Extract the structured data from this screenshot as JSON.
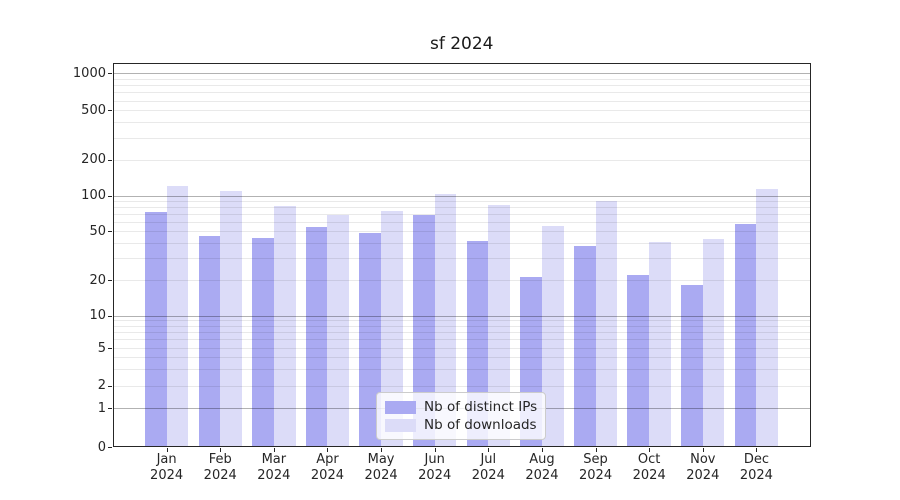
{
  "title": "sf 2024",
  "chart_data": {
    "type": "bar",
    "title": "sf 2024",
    "categories": [
      "Jan 2024",
      "Feb 2024",
      "Mar 2024",
      "Apr 2024",
      "May 2024",
      "Jun 2024",
      "Jul 2024",
      "Aug 2024",
      "Sep 2024",
      "Oct 2024",
      "Nov 2024",
      "Dec 2024"
    ],
    "series": [
      {
        "name": "Nb of distinct IPs",
        "color": "#aaaaf2",
        "values": [
          72,
          46,
          44,
          54,
          48,
          68,
          42,
          21,
          38,
          22,
          18,
          58
        ]
      },
      {
        "name": "Nb of downloads",
        "color": "#dcdcf8",
        "values": [
          120,
          110,
          82,
          68,
          74,
          103,
          84,
          55,
          90,
          41,
          43,
          113
        ]
      }
    ],
    "xlabel": "",
    "ylabel": "",
    "yticks": [
      0,
      1,
      2,
      5,
      10,
      20,
      50,
      100,
      200,
      500,
      1000
    ],
    "ylim": [
      0,
      1180
    ],
    "scale": "symlog",
    "grid": "horizontal major and minor gridlines",
    "legend_position": "lower center"
  },
  "legend": {
    "items": [
      {
        "label": "Nb of distinct IPs",
        "color": "#aaaaf2"
      },
      {
        "label": "Nb of downloads",
        "color": "#dcdcf8"
      }
    ]
  }
}
